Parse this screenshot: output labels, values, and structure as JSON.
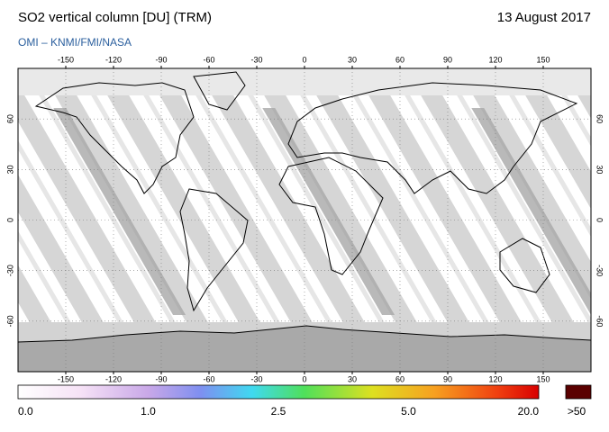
{
  "chart_data": {
    "type": "map",
    "title": "SO2 vertical column [DU] (TRM)",
    "date": "13 August 2017",
    "source": "OMI  –  KNMI/FMI/NASA",
    "xlim": [
      -180,
      180
    ],
    "ylim": [
      -90,
      90
    ],
    "xticks": [
      -150,
      -120,
      -90,
      -60,
      -30,
      0,
      30,
      60,
      90,
      120,
      150
    ],
    "yticks": [
      -60,
      -30,
      0,
      30,
      60
    ],
    "grid": true,
    "colorbar": {
      "labels": [
        "0.0",
        "1.0",
        "2.5",
        "5.0",
        "20.0"
      ],
      "over_label": ">50"
    }
  }
}
